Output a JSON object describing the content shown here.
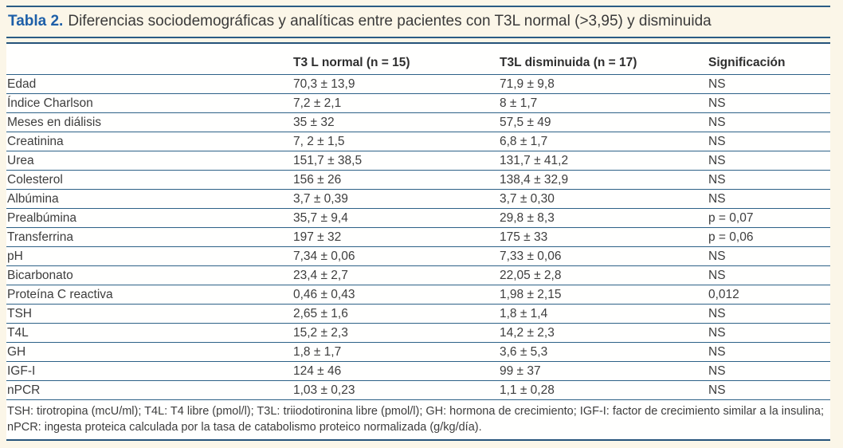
{
  "title": {
    "label": "Tabla 2.",
    "text": "Diferencias sociodemográficas y analíticas entre pacientes con T3L normal (>3,95) y disminuida"
  },
  "colors": {
    "accent_blue": "#1d5fa8",
    "rule_blue": "#2d6187",
    "page_background": "#fbf6e8",
    "row_background": "#fffffe",
    "text": "#3d3d3d"
  },
  "table": {
    "columns": [
      "",
      "T3 L normal (n = 15)",
      "T3L disminuida (n = 17)",
      "Significación"
    ],
    "rows": [
      {
        "label": "Edad",
        "normal": "70,3 ± 13,9",
        "disminuida": "71,9 ± 9,8",
        "sig": "NS"
      },
      {
        "label": "Índice Charlson",
        "normal": "7,2 ± 2,1",
        "disminuida": "8 ± 1,7",
        "sig": "NS"
      },
      {
        "label": "Meses en diálisis",
        "normal": "35 ± 32",
        "disminuida": "57,5 ± 49",
        "sig": "NS"
      },
      {
        "label": "Creatinina",
        "normal": "7, 2 ± 1,5",
        "disminuida": "6,8 ± 1,7",
        "sig": "NS"
      },
      {
        "label": "Urea",
        "normal": "151,7 ± 38,5",
        "disminuida": "131,7 ± 41,2",
        "sig": "NS"
      },
      {
        "label": "Colesterol",
        "normal": "156 ± 26",
        "disminuida": "138,4 ± 32,9",
        "sig": "NS"
      },
      {
        "label": "Albúmina",
        "normal": "3,7 ± 0,39",
        "disminuida": "3,7 ± 0,30",
        "sig": "NS"
      },
      {
        "label": "Prealbúmina",
        "normal": "35,7 ± 9,4",
        "disminuida": "29,8 ± 8,3",
        "sig": "p = 0,07"
      },
      {
        "label": "Transferrina",
        "normal": "197 ± 32",
        "disminuida": "175 ± 33",
        "sig": "p = 0,06"
      },
      {
        "label": "pH",
        "normal": "7,34 ± 0,06",
        "disminuida": "7,33 ± 0,06",
        "sig": "NS"
      },
      {
        "label": "Bicarbonato",
        "normal": "23,4 ± 2,7",
        "disminuida": "22,05 ± 2,8",
        "sig": "NS"
      },
      {
        "label": "Proteína C reactiva",
        "normal": "0,46 ± 0,43",
        "disminuida": "1,98 ± 2,15",
        "sig": "0,012"
      },
      {
        "label": "TSH",
        "normal": "2,65 ± 1,6",
        "disminuida": "1,8 ± 1,4",
        "sig": "NS"
      },
      {
        "label": "T4L",
        "normal": "15,2 ± 2,3",
        "disminuida": "14,2 ± 2,3",
        "sig": "NS"
      },
      {
        "label": "GH",
        "normal": "1,8 ± 1,7",
        "disminuida": "3,6 ± 5,3",
        "sig": "NS"
      },
      {
        "label": "IGF-I",
        "normal": "124 ± 46",
        "disminuida": "99 ± 37",
        "sig": "NS"
      },
      {
        "label": "nPCR",
        "normal": "1,03 ± 0,23",
        "disminuida": "1,1 ± 0,28",
        "sig": "NS"
      }
    ]
  },
  "footnote": "TSH: tirotropina (mcU/ml); T4L: T4 libre (pmol/l); T3L: triiodotironina libre (pmol/l); GH: hormona de crecimiento; IGF-I: factor de crecimiento similar a la insulina; nPCR: ingesta proteica calculada por la tasa de catabolismo proteico normalizada (g/kg/día)."
}
